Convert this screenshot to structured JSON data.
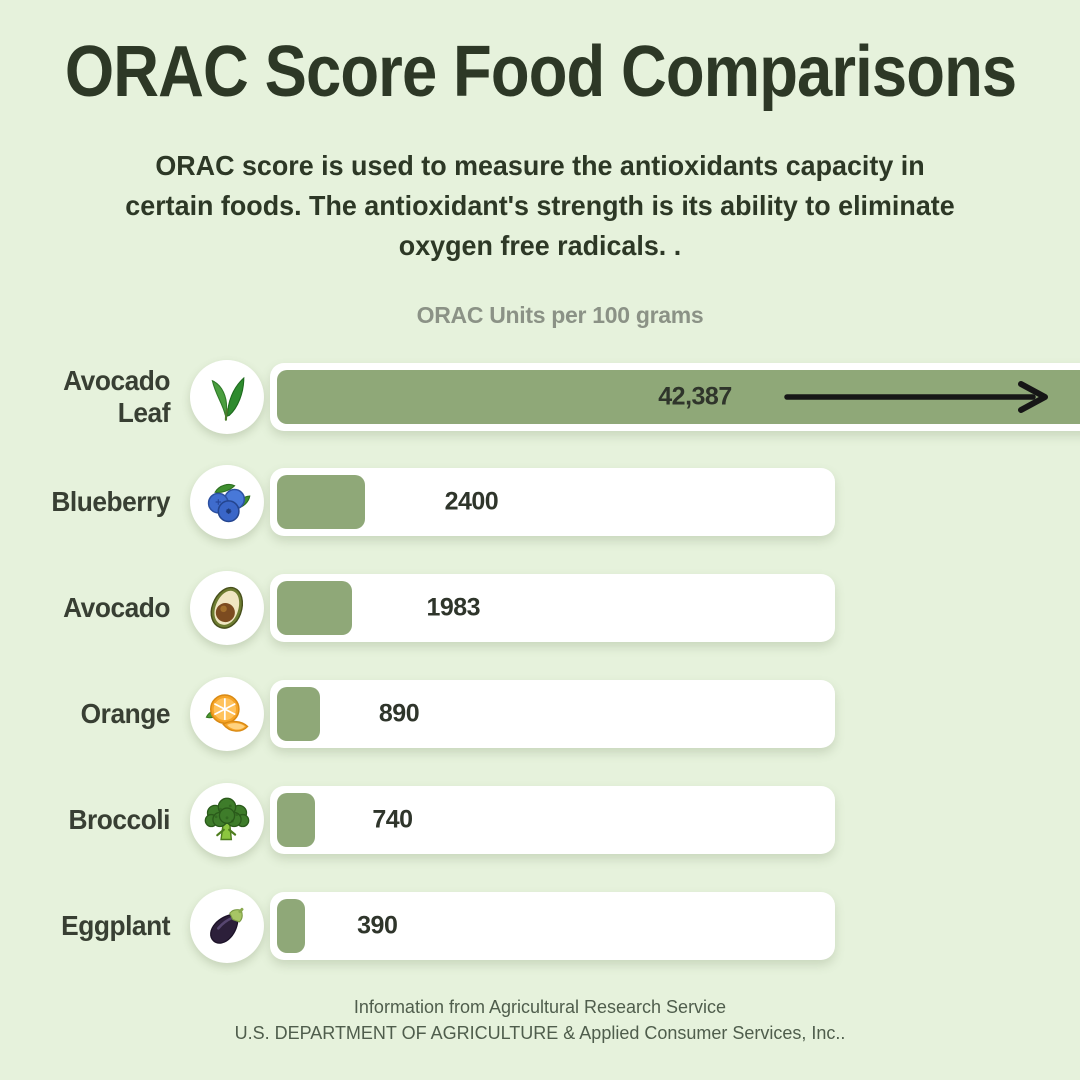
{
  "page": {
    "title": "ORAC Score Food Comparisons",
    "subtitle_lines": [
      "ORAC score is used to measure the antioxidants capacity in",
      "certain foods. The antioxidant's strength is its ability to eliminate",
      "oxygen free radicals. ."
    ],
    "footer_lines": [
      "Information from Agricultural Research Service",
      "U.S. DEPARTMENT OF AGRICULTURE & Applied Consumer Services, Inc.."
    ]
  },
  "chart_data": {
    "type": "bar",
    "orientation": "horizontal",
    "title": "ORAC Units per 100 grams",
    "categories": [
      "Avocado Leaf",
      "Blueberry",
      "Avocado",
      "Orange",
      "Broccoli",
      "Eggplant"
    ],
    "values": [
      42387,
      2400,
      1983,
      890,
      740,
      390
    ],
    "rows": [
      {
        "label": "Avocado Leaf",
        "value": 42387,
        "display": "42,387",
        "icon": "avocado-leaf-icon",
        "overflow_arrow": true
      },
      {
        "label": "Blueberry",
        "value": 2400,
        "display": "2400",
        "icon": "blueberry-icon",
        "overflow_arrow": false
      },
      {
        "label": "Avocado",
        "value": 1983,
        "display": "1983",
        "icon": "avocado-icon",
        "overflow_arrow": false
      },
      {
        "label": "Orange",
        "value": 890,
        "display": "890",
        "icon": "orange-icon",
        "overflow_arrow": false
      },
      {
        "label": "Broccoli",
        "value": 740,
        "display": "740",
        "icon": "broccoli-icon",
        "overflow_arrow": false
      },
      {
        "label": "Eggplant",
        "value": 390,
        "display": "390",
        "icon": "eggplant-icon",
        "overflow_arrow": false
      }
    ],
    "legend": "none",
    "grid": "off",
    "colors": {
      "background": "#e6f2dc",
      "bar": "#8fa878",
      "track": "#ffffff",
      "title_text": "#2d3826",
      "muted_text": "#8b9286",
      "footer_text": "#4f5d4c",
      "arrow": "#161616"
    }
  }
}
